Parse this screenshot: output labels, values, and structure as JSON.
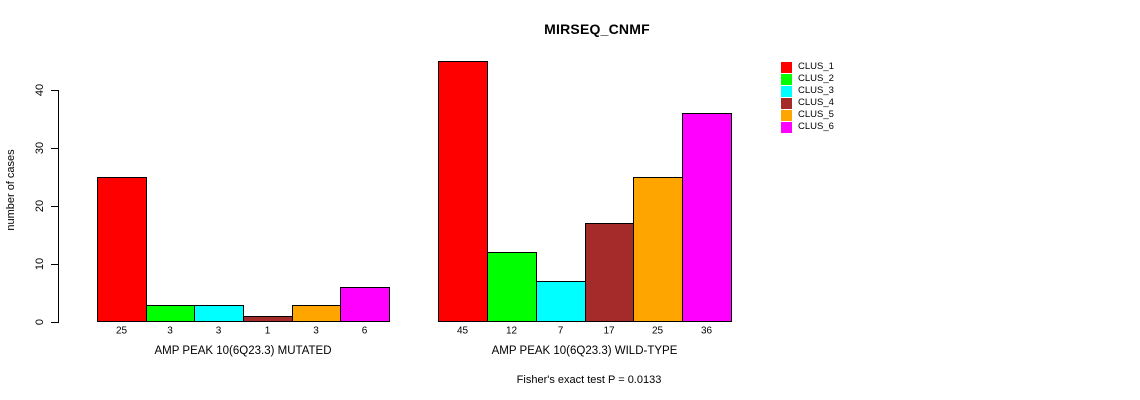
{
  "chart_data": {
    "type": "bar",
    "title": "MIRSEQ_CNMF",
    "ylabel": "number of cases",
    "xlabel": "",
    "ylim": [
      0,
      45
    ],
    "yticks": [
      0,
      10,
      20,
      30,
      40
    ],
    "grid": false,
    "legend_position": "top-right",
    "series": [
      {
        "name": "CLUS_1",
        "color": "#ff0000"
      },
      {
        "name": "CLUS_2",
        "color": "#00ff00"
      },
      {
        "name": "CLUS_3",
        "color": "#00ffff"
      },
      {
        "name": "CLUS_4",
        "color": "#a52a2a"
      },
      {
        "name": "CLUS_5",
        "color": "#ffa500"
      },
      {
        "name": "CLUS_6",
        "color": "#ff00ff"
      }
    ],
    "groups": [
      {
        "xlabel": "AMP PEAK 10(6Q23.3) MUTATED",
        "values": [
          25,
          3,
          3,
          1,
          3,
          6
        ]
      },
      {
        "xlabel": "AMP PEAK 10(6Q23.3) WILD-TYPE",
        "values": [
          45,
          12,
          7,
          17,
          25,
          36
        ]
      }
    ],
    "annotation": "Fisher's exact test P = 0.0133"
  }
}
